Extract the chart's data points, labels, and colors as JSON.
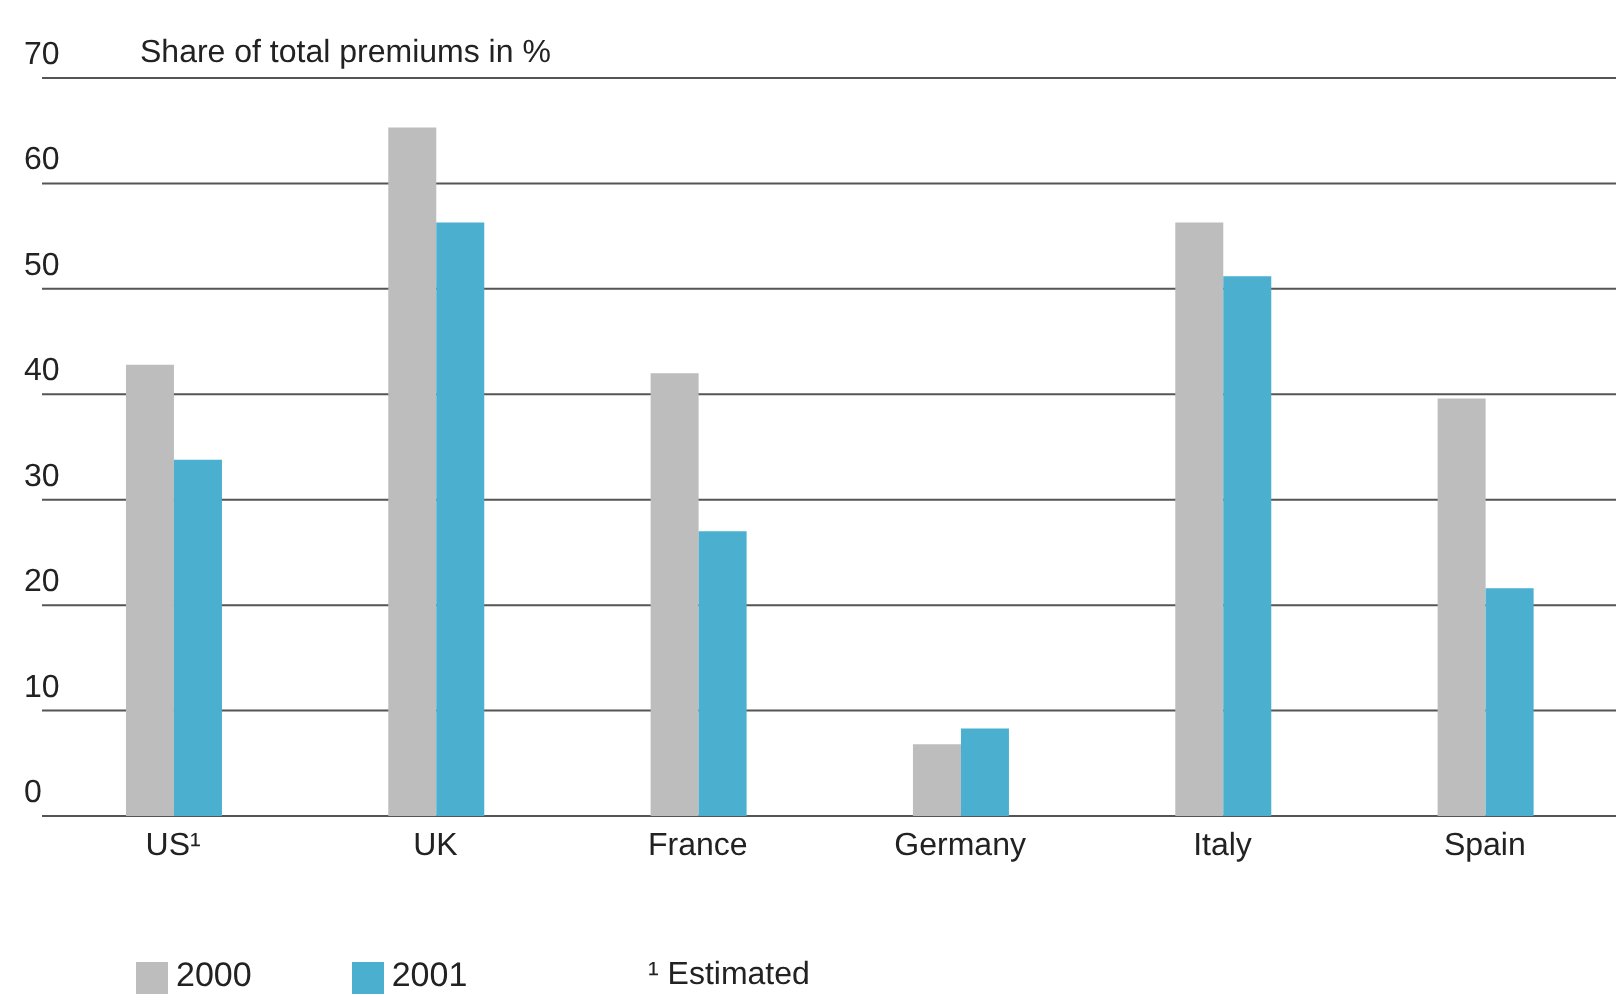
{
  "chart_data": {
    "type": "bar",
    "ylabel": "Share of total premiums in %",
    "categories": [
      "US¹",
      "UK",
      "France",
      "Germany",
      "Italy",
      "Spain"
    ],
    "series": [
      {
        "name": "2000",
        "color": "#bdbdbd",
        "values": [
          42.8,
          65.3,
          42,
          6.8,
          56.3,
          39.6
        ]
      },
      {
        "name": "2001",
        "color": "#4bafd0",
        "values": [
          33.8,
          56.3,
          27,
          8.3,
          51.2,
          21.6
        ]
      }
    ],
    "ylim": [
      0,
      70
    ],
    "yticks": [
      0,
      10,
      20,
      30,
      40,
      50,
      60,
      70
    ],
    "grid": "y",
    "legend": "bottom left",
    "annotations": [
      "¹ Estimated"
    ]
  }
}
